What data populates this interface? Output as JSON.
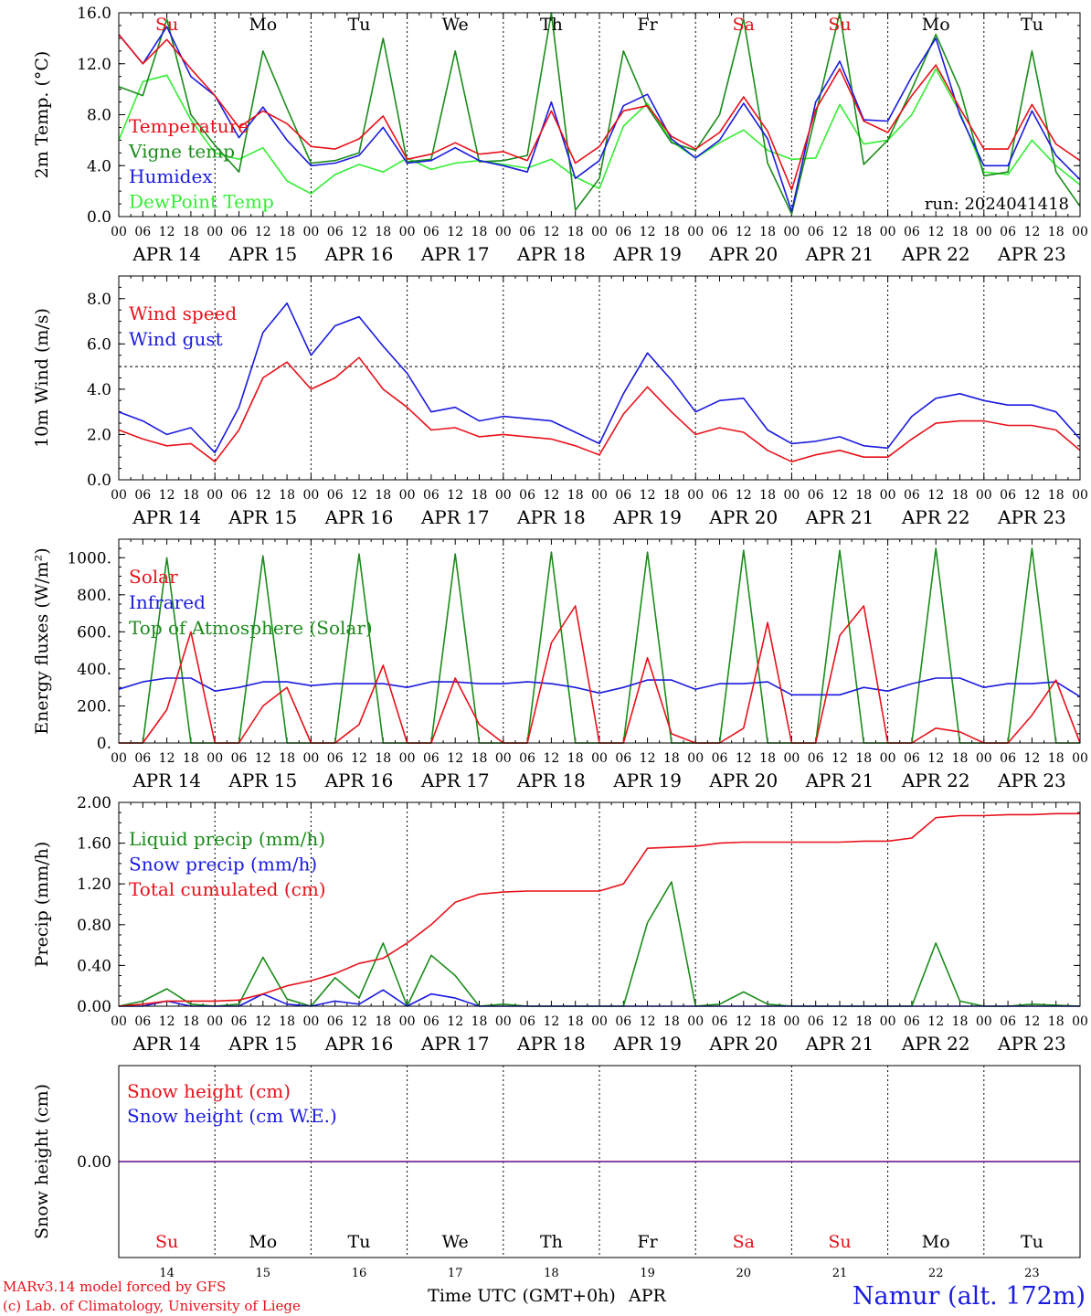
{
  "hours": [
    "00",
    "06",
    "12",
    "18"
  ],
  "last_hour": "00",
  "day_labels": [
    "APR 14",
    "APR 15",
    "APR 16",
    "APR 17",
    "APR 18",
    "APR 19",
    "APR 20",
    "APR 21",
    "APR 22",
    "APR 23"
  ],
  "weekdays": [
    "Su",
    "Mo",
    "Tu",
    "We",
    "Th",
    "Fr",
    "Sa",
    "Su",
    "Mo",
    "Tu"
  ],
  "weekday_colors": [
    "#e8111a",
    "#000000",
    "#000000",
    "#000000",
    "#000000",
    "#000000",
    "#e8111a",
    "#e8111a",
    "#000000",
    "#000000"
  ],
  "day_numbers": [
    "14",
    "15",
    "16",
    "17",
    "18",
    "19",
    "20",
    "21",
    "22",
    "23"
  ],
  "run_label": "run: 2024041418",
  "x_axis_title": "Time UTC (GMT+0h)",
  "x_axis_month": "APR",
  "credits": [
    "MARv3.14 model forced by GFS",
    "(c) Lab. of Climatology, University of Liege"
  ],
  "station": "Namur (alt. 172m)",
  "colors": {
    "red": "#e8111a",
    "blue": "#1a1ae0",
    "green": "#1a8c1a",
    "lightgreen": "#33ee33",
    "purple": "#7a2a9a"
  },
  "chart_data": [
    {
      "type": "line",
      "ylabel": "2m Temp. (°C)",
      "ylim": [
        0,
        16
      ],
      "yticks": [
        "0.0",
        "4.0",
        "8.0",
        "12.0",
        "16.0"
      ],
      "x": "hours since APR 14 00 UTC, 6-hourly",
      "series": [
        {
          "name": "Temperature",
          "color": "#e8111a",
          "values": [
            14.3,
            12.0,
            13.9,
            11.6,
            9.5,
            7.0,
            8.3,
            7.3,
            5.5,
            5.3,
            6.1,
            7.9,
            4.5,
            4.9,
            5.8,
            4.9,
            5.1,
            4.4,
            8.3,
            4.2,
            5.5,
            8.3,
            8.7,
            6.3,
            5.3,
            6.6,
            9.4,
            6.7,
            2.1,
            8.4,
            11.6,
            7.5,
            6.6,
            9.5,
            11.9,
            8.5,
            5.3,
            5.3,
            8.8,
            5.7,
            4.4
          ]
        },
        {
          "name": "Vigne temp",
          "color": "#1a8c1a",
          "values": [
            10.2,
            9.5,
            15.5,
            8.0,
            5.6,
            3.5,
            13.0,
            8.5,
            4.2,
            4.4,
            5.0,
            14.0,
            4.3,
            4.5,
            13.0,
            4.3,
            4.4,
            4.8,
            16.0,
            0.5,
            3.0,
            13.0,
            8.6,
            5.8,
            5.2,
            8.0,
            15.5,
            4.2,
            0.2,
            8.0,
            16.0,
            4.1,
            6.0,
            10.0,
            14.3,
            10.0,
            3.2,
            3.5,
            13.0,
            3.5,
            0.8
          ]
        },
        {
          "name": "Humidex",
          "color": "#1a1ae0",
          "values": [
            14.3,
            12.0,
            14.9,
            11.0,
            9.5,
            6.2,
            8.6,
            6.0,
            4.0,
            4.2,
            4.8,
            7.0,
            4.2,
            4.4,
            5.4,
            4.4,
            4.0,
            3.5,
            9.0,
            3.0,
            4.4,
            8.7,
            9.6,
            6.1,
            4.6,
            6.0,
            8.9,
            6.1,
            0.4,
            9.0,
            12.2,
            7.6,
            7.5,
            11.0,
            14.0,
            8.0,
            4.0,
            4.0,
            8.3,
            4.8,
            2.9
          ]
        },
        {
          "name": "DewPoint Temp",
          "color": "#33ee33",
          "values": [
            6.0,
            10.6,
            11.1,
            7.6,
            5.0,
            4.5,
            5.4,
            2.8,
            1.8,
            3.3,
            4.1,
            3.5,
            4.6,
            3.7,
            4.2,
            4.4,
            4.1,
            3.8,
            4.5,
            3.1,
            2.2,
            7.1,
            8.9,
            5.9,
            4.6,
            5.8,
            6.8,
            5.2,
            4.5,
            4.6,
            8.8,
            5.7,
            6.0,
            8.0,
            11.6,
            8.2,
            3.5,
            3.3,
            6.0,
            4.0,
            2.5
          ]
        }
      ]
    },
    {
      "type": "line",
      "ylabel": "10m Wind (m/s)",
      "ylim": [
        0,
        9
      ],
      "yticks": [
        "0.0",
        "2.0",
        "4.0",
        "6.0",
        "8.0"
      ],
      "reference_line": 5.0,
      "series": [
        {
          "name": "Wind speed",
          "color": "#e8111a",
          "values": [
            2.2,
            1.8,
            1.5,
            1.6,
            0.8,
            2.2,
            4.5,
            5.2,
            4.0,
            4.5,
            5.4,
            4.0,
            3.2,
            2.2,
            2.3,
            1.9,
            2.0,
            1.9,
            1.8,
            1.5,
            1.1,
            2.9,
            4.1,
            3.0,
            2.0,
            2.3,
            2.1,
            1.3,
            0.8,
            1.1,
            1.3,
            1.0,
            1.0,
            1.8,
            2.5,
            2.6,
            2.6,
            2.4,
            2.4,
            2.2,
            1.3
          ]
        },
        {
          "name": "Wind gust",
          "color": "#1a1ae0",
          "values": [
            3.0,
            2.6,
            2.0,
            2.3,
            1.2,
            3.2,
            6.5,
            7.8,
            5.5,
            6.8,
            7.2,
            5.9,
            4.7,
            3.0,
            3.2,
            2.6,
            2.8,
            2.7,
            2.6,
            2.1,
            1.6,
            3.8,
            5.6,
            4.4,
            3.0,
            3.5,
            3.6,
            2.2,
            1.6,
            1.7,
            1.9,
            1.5,
            1.4,
            2.8,
            3.6,
            3.8,
            3.5,
            3.3,
            3.3,
            3.0,
            1.8
          ]
        }
      ]
    },
    {
      "type": "line",
      "ylabel": "Energy fluxes (W/m²)",
      "ylim": [
        0,
        1100
      ],
      "yticks": [
        "0.",
        "200.",
        "400.",
        "600.",
        "800.",
        "1000."
      ],
      "series": [
        {
          "name": "Solar",
          "color": "#e8111a",
          "values": [
            0,
            0,
            180,
            600,
            0,
            0,
            200,
            300,
            0,
            0,
            100,
            420,
            0,
            0,
            350,
            100,
            0,
            0,
            540,
            740,
            0,
            0,
            460,
            50,
            0,
            0,
            80,
            650,
            0,
            0,
            580,
            740,
            0,
            0,
            80,
            60,
            0,
            0,
            150,
            340,
            0
          ]
        },
        {
          "name": "Infrared",
          "color": "#1a1ae0",
          "values": [
            290,
            330,
            350,
            350,
            280,
            300,
            330,
            330,
            310,
            320,
            320,
            320,
            300,
            330,
            330,
            320,
            320,
            330,
            320,
            300,
            270,
            300,
            340,
            340,
            290,
            320,
            320,
            330,
            260,
            260,
            260,
            300,
            280,
            320,
            350,
            350,
            300,
            320,
            320,
            330,
            250
          ]
        },
        {
          "name": "Top of Atmosphere (Solar)",
          "color": "#1a8c1a",
          "values": [
            0,
            0,
            1000,
            0,
            0,
            0,
            1010,
            0,
            0,
            0,
            1020,
            0,
            0,
            0,
            1020,
            0,
            0,
            0,
            1030,
            0,
            0,
            0,
            1030,
            0,
            0,
            0,
            1040,
            0,
            0,
            0,
            1040,
            0,
            0,
            0,
            1050,
            0,
            0,
            0,
            1050,
            0,
            0
          ]
        }
      ]
    },
    {
      "type": "line",
      "ylabel": "Precip (mm/h)",
      "ylim": [
        0,
        2
      ],
      "yticks": [
        "0.00",
        "0.40",
        "0.80",
        "1.20",
        "1.60",
        "2.00"
      ],
      "series": [
        {
          "name": "Liquid precip (mm/h)",
          "color": "#1a8c1a",
          "values": [
            0.0,
            0.05,
            0.17,
            0.02,
            0.0,
            0.02,
            0.48,
            0.07,
            0.0,
            0.28,
            0.08,
            0.62,
            0.0,
            0.5,
            0.3,
            0.0,
            0.02,
            0.0,
            0.0,
            0.0,
            0.0,
            0.0,
            0.82,
            1.22,
            0.0,
            0.02,
            0.14,
            0.02,
            0.0,
            0.0,
            0.0,
            0.0,
            0.0,
            0.0,
            0.62,
            0.05,
            0.0,
            0.0,
            0.02,
            0.01,
            0.0
          ]
        },
        {
          "name": "Snow precip (mm/h)",
          "color": "#1a1ae0",
          "values": [
            0.0,
            0.0,
            0.05,
            0.0,
            0.0,
            0.0,
            0.12,
            0.02,
            0.0,
            0.05,
            0.02,
            0.16,
            0.0,
            0.12,
            0.08,
            0.0,
            0.0,
            0.0,
            0.0,
            0.0,
            0.0,
            0.0,
            0.0,
            0.0,
            0.0,
            0.0,
            0.0,
            0.0,
            0.0,
            0.0,
            0.0,
            0.0,
            0.0,
            0.0,
            0.0,
            0.0,
            0.0,
            0.0,
            0.0,
            0.0,
            0.0
          ]
        },
        {
          "name": "Total cumulated (cm)",
          "color": "#e8111a",
          "values": [
            0.0,
            0.02,
            0.05,
            0.05,
            0.05,
            0.06,
            0.12,
            0.2,
            0.25,
            0.32,
            0.42,
            0.47,
            0.62,
            0.8,
            1.02,
            1.1,
            1.12,
            1.13,
            1.13,
            1.13,
            1.13,
            1.2,
            1.55,
            1.56,
            1.57,
            1.6,
            1.61,
            1.61,
            1.61,
            1.61,
            1.61,
            1.62,
            1.62,
            1.65,
            1.85,
            1.87,
            1.87,
            1.88,
            1.88,
            1.89,
            1.89
          ]
        }
      ]
    },
    {
      "type": "line",
      "ylabel": "Snow height (cm)",
      "ylim": [
        -1,
        1
      ],
      "yticks": [
        "0.00"
      ],
      "series": [
        {
          "name": "Snow height (cm)",
          "color": "#e8111a",
          "values": [
            0,
            0
          ]
        },
        {
          "name": "Snow height (cm W.E.)",
          "color": "#1a1ae0",
          "values": [
            0,
            0
          ]
        }
      ]
    }
  ]
}
